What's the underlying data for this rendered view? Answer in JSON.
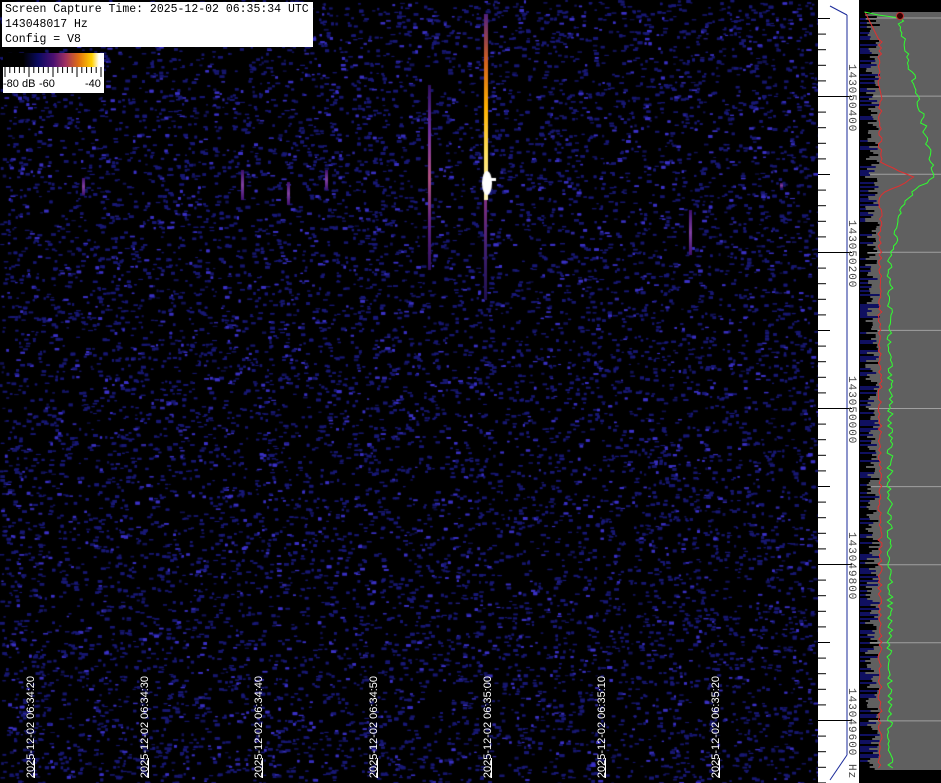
{
  "header": {
    "capture_time": "Screen Capture Time: 2025-12-02 06:35:34 UTC",
    "frequency": "143048017 Hz",
    "config": "Config = V8"
  },
  "colorbar": {
    "labels": [
      "-80 dB",
      "-60",
      "-40"
    ],
    "range_db": [
      -80,
      -35
    ]
  },
  "chart_data": {
    "type": "heatmap",
    "subtype": "spectrogram-waterfall",
    "x_ticks": [
      "2025-12-02 06:34:20",
      "2025-12-02 06:34:30",
      "2025-12-02 06:34:40",
      "2025-12-02 06:34:50",
      "2025-12-02 06:35:00",
      "2025-12-02 06:35:10",
      "2025-12-02 06:35:20"
    ],
    "y_ticks": [
      "143050400",
      "143050200",
      "143050000",
      "143049800",
      "143049600 Hz"
    ],
    "colors": {
      "noise": "#1a1a80",
      "signal_strong": "#ffd000",
      "spectrum_avg": "#e03030",
      "spectrum_peak": "#30ff30",
      "panel": "#606060"
    }
  }
}
